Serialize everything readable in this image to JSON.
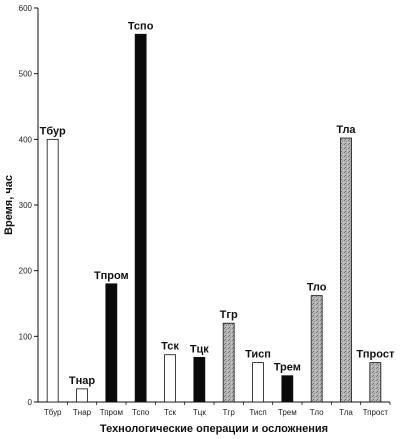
{
  "chart_data": {
    "type": "bar",
    "xlabel": "Технологические операции и осложнения",
    "ylabel": "Время, час",
    "ylim": [
      0,
      600
    ],
    "yticks": [
      0,
      100,
      200,
      300,
      400,
      500,
      600
    ],
    "grid": false,
    "categories": [
      "Тбур",
      "Тнар",
      "Тпром",
      "Тспо",
      "Тск",
      "Тцк",
      "Тгр",
      "Тисп",
      "Трем",
      "Тло",
      "Тла",
      "Тпрост"
    ],
    "data_labels": [
      "Тбур",
      "Тнар",
      "Тпром",
      "Тспо",
      "Тск",
      "Тцк",
      "Тгр",
      "Тисп",
      "Трем",
      "Тло",
      "Тла",
      "Тпрост"
    ],
    "values": [
      400,
      20,
      180,
      560,
      72,
      68,
      120,
      60,
      40,
      162,
      402,
      60
    ],
    "fills": [
      "white",
      "white",
      "black",
      "black",
      "white",
      "black",
      "gray",
      "white",
      "black",
      "gray",
      "gray",
      "gray"
    ]
  },
  "colors": {
    "white": "#ffffff",
    "black": "#0a0a0a",
    "gray": "#a9a9a9",
    "stroke": "#111111"
  }
}
